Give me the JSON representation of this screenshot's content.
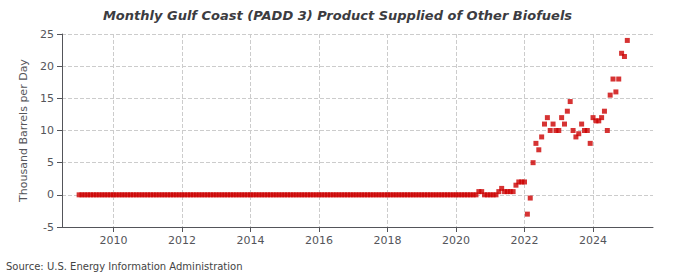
{
  "chart_data": {
    "type": "scatter",
    "title": "Monthly Gulf Coast (PADD 3) Product Supplied of Other Biofuels",
    "ylabel": "Thousand Barrels per Day",
    "annotations": [
      "Source: U.S. Energy Information Administration"
    ],
    "color": "#cc0000",
    "marker": "square",
    "grid": true,
    "xlim": [
      2008.5,
      2025.75
    ],
    "xticks": [
      2010,
      2012,
      2014,
      2016,
      2018,
      2020,
      2022,
      2024
    ],
    "ylim": [
      -5,
      25
    ],
    "yticks": [
      -5,
      0,
      5,
      10,
      15,
      20,
      25
    ],
    "x": [
      2009.0,
      2009.083,
      2009.167,
      2009.25,
      2009.333,
      2009.417,
      2009.5,
      2009.583,
      2009.667,
      2009.75,
      2009.833,
      2009.917,
      2010.0,
      2010.083,
      2010.167,
      2010.25,
      2010.333,
      2010.417,
      2010.5,
      2010.583,
      2010.667,
      2010.75,
      2010.833,
      2010.917,
      2011.0,
      2011.083,
      2011.167,
      2011.25,
      2011.333,
      2011.417,
      2011.5,
      2011.583,
      2011.667,
      2011.75,
      2011.833,
      2011.917,
      2012.0,
      2012.083,
      2012.167,
      2012.25,
      2012.333,
      2012.417,
      2012.5,
      2012.583,
      2012.667,
      2012.75,
      2012.833,
      2012.917,
      2013.0,
      2013.083,
      2013.167,
      2013.25,
      2013.333,
      2013.417,
      2013.5,
      2013.583,
      2013.667,
      2013.75,
      2013.833,
      2013.917,
      2014.0,
      2014.083,
      2014.167,
      2014.25,
      2014.333,
      2014.417,
      2014.5,
      2014.583,
      2014.667,
      2014.75,
      2014.833,
      2014.917,
      2015.0,
      2015.083,
      2015.167,
      2015.25,
      2015.333,
      2015.417,
      2015.5,
      2015.583,
      2015.667,
      2015.75,
      2015.833,
      2015.917,
      2016.0,
      2016.083,
      2016.167,
      2016.25,
      2016.333,
      2016.417,
      2016.5,
      2016.583,
      2016.667,
      2016.75,
      2016.833,
      2016.917,
      2017.0,
      2017.083,
      2017.167,
      2017.25,
      2017.333,
      2017.417,
      2017.5,
      2017.583,
      2017.667,
      2017.75,
      2017.833,
      2017.917,
      2018.0,
      2018.083,
      2018.167,
      2018.25,
      2018.333,
      2018.417,
      2018.5,
      2018.583,
      2018.667,
      2018.75,
      2018.833,
      2018.917,
      2019.0,
      2019.083,
      2019.167,
      2019.25,
      2019.333,
      2019.417,
      2019.5,
      2019.583,
      2019.667,
      2019.75,
      2019.833,
      2019.917,
      2020.0,
      2020.083,
      2020.167,
      2020.25,
      2020.333,
      2020.417,
      2020.5,
      2020.583,
      2020.667,
      2020.75,
      2020.833,
      2020.917,
      2021.0,
      2021.083,
      2021.167,
      2021.25,
      2021.333,
      2021.417,
      2021.5,
      2021.583,
      2021.667,
      2021.75,
      2021.833,
      2021.917,
      2022.0,
      2022.083,
      2022.167,
      2022.25,
      2022.333,
      2022.417,
      2022.5,
      2022.583,
      2022.667,
      2022.75,
      2022.833,
      2022.917,
      2023.0,
      2023.083,
      2023.167,
      2023.25,
      2023.333,
      2023.417,
      2023.5,
      2023.583,
      2023.667,
      2023.75,
      2023.833,
      2023.917,
      2024.0,
      2024.083,
      2024.167,
      2024.25,
      2024.333,
      2024.417,
      2024.5,
      2024.583,
      2024.667,
      2024.75,
      2024.833,
      2024.917,
      2025.0
    ],
    "values": [
      0,
      0,
      0,
      0,
      0,
      0,
      0,
      0,
      0,
      0,
      0,
      0,
      0,
      0,
      0,
      0,
      0,
      0,
      0,
      0,
      0,
      0,
      0,
      0,
      0,
      0,
      0,
      0,
      0,
      0,
      0,
      0,
      0,
      0,
      0,
      0,
      0,
      0,
      0,
      0,
      0,
      0,
      0,
      0,
      0,
      0,
      0,
      0,
      0,
      0,
      0,
      0,
      0,
      0,
      0,
      0,
      0,
      0,
      0,
      0,
      0,
      0,
      0,
      0,
      0,
      0,
      0,
      0,
      0,
      0,
      0,
      0,
      0,
      0,
      0,
      0,
      0,
      0,
      0,
      0,
      0,
      0,
      0,
      0,
      0,
      0,
      0,
      0,
      0,
      0,
      0,
      0,
      0,
      0,
      0,
      0,
      0,
      0,
      0,
      0,
      0,
      0,
      0,
      0,
      0,
      0,
      0,
      0,
      0,
      0,
      0,
      0,
      0,
      0,
      0,
      0,
      0,
      0,
      0,
      0,
      0,
      0,
      0,
      0,
      0,
      0,
      0,
      0,
      0,
      0,
      0,
      0,
      0,
      0,
      0,
      0,
      0,
      0,
      0,
      0,
      0.5,
      0.5,
      0,
      0,
      0,
      0,
      0,
      0.5,
      1.0,
      0.5,
      0.5,
      0.5,
      0.5,
      1.5,
      2.0,
      2.0,
      2.0,
      -3.0,
      -0.5,
      5.0,
      8.0,
      7.0,
      9.0,
      11.0,
      12.0,
      10.0,
      11.0,
      10.0,
      10.0,
      12.0,
      11.0,
      13.0,
      14.5,
      10.0,
      9.0,
      9.5,
      11.0,
      10.0,
      10.0,
      8.0,
      12.0,
      11.5,
      11.5,
      12.0,
      13.0,
      10.0,
      15.5,
      18.0,
      16.0,
      18.0,
      22.0,
      21.5,
      24.0
    ]
  }
}
